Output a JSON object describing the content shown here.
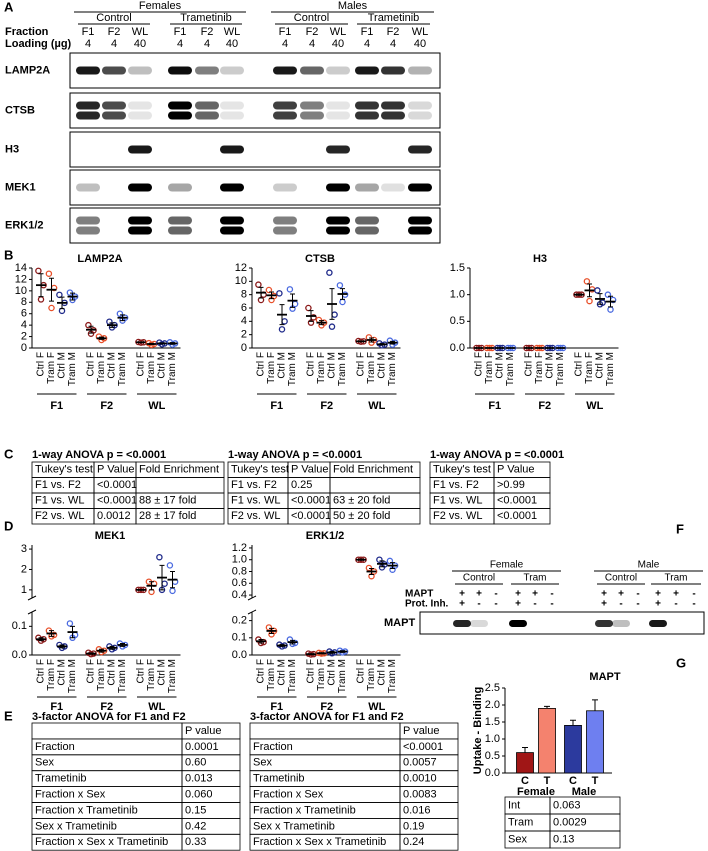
{
  "panel_labels": [
    "A",
    "B",
    "C",
    "D",
    "E",
    "F",
    "G"
  ],
  "blot_a": {
    "groups": [
      {
        "name": "Females",
        "subgroups": [
          "Control",
          "Trametinib"
        ]
      },
      {
        "name": "Males",
        "subgroups": [
          "Control",
          "Trametinib"
        ]
      }
    ],
    "row_labels": [
      "Fraction",
      "Loading (µg)"
    ],
    "fractions": [
      "F1",
      "F2",
      "WL",
      "F1",
      "F2",
      "WL",
      "F1",
      "F2",
      "WL",
      "F1",
      "F2",
      "WL"
    ],
    "loading": [
      4,
      4,
      40,
      4,
      4,
      40,
      4,
      4,
      40,
      4,
      4,
      40
    ],
    "proteins": [
      "LAMP2A",
      "CTSB",
      "H3",
      "MEK1",
      "ERK1/2"
    ]
  },
  "chart_data": [
    {
      "type": "dot",
      "title": "LAMP2A",
      "groups": [
        "F1",
        "F2",
        "WL"
      ],
      "ylim": [
        0,
        14
      ],
      "yticks": [
        0,
        2,
        4,
        6,
        8,
        10,
        12,
        14
      ],
      "series": [
        {
          "name": "Ctrl F",
          "color": "#8b1a1a",
          "values": [
            11.0,
            3.2,
            1.0
          ],
          "errors": [
            2.0,
            0.6,
            0.05
          ],
          "points": [
            [
              13.5,
              11.0,
              8.5
            ],
            [
              4.0,
              3.1,
              2.5
            ],
            [
              1.05,
              1.0,
              0.95
            ]
          ]
        },
        {
          "name": "Tram F",
          "color": "#e8502a",
          "values": [
            10.2,
            1.7,
            0.7
          ],
          "errors": [
            2.0,
            0.2,
            0.1
          ],
          "points": [
            [
              13.0,
              10.5,
              7.0
            ],
            [
              2.0,
              1.7,
              1.4
            ],
            [
              0.85,
              0.7,
              0.55
            ]
          ]
        },
        {
          "name": "Ctrl M",
          "color": "#1f2a8a",
          "values": [
            7.9,
            4.0,
            0.8
          ],
          "errors": [
            1.0,
            0.4,
            0.1
          ],
          "points": [
            [
              9.3,
              7.9,
              6.5
            ],
            [
              4.6,
              4.0,
              3.6
            ],
            [
              0.95,
              0.8,
              0.65
            ]
          ]
        },
        {
          "name": "Tram M",
          "color": "#4a6ae0",
          "values": [
            9.0,
            5.3,
            0.8
          ],
          "errors": [
            0.6,
            0.5,
            0.15
          ],
          "points": [
            [
              9.7,
              9.0,
              8.4
            ],
            [
              6.0,
              5.3,
              4.8
            ],
            [
              1.0,
              0.8,
              0.6
            ]
          ]
        }
      ]
    },
    {
      "type": "dot",
      "title": "CTSB",
      "groups": [
        "F1",
        "F2",
        "WL"
      ],
      "ylim": [
        0,
        12
      ],
      "yticks": [
        0,
        2,
        4,
        6,
        8,
        10,
        12
      ],
      "series": [
        {
          "name": "Ctrl F",
          "color": "#8b1a1a",
          "values": [
            8.3,
            4.8,
            1.0
          ],
          "errors": [
            0.8,
            0.8,
            0.05
          ],
          "points": [
            [
              9.5,
              8.0,
              7.2
            ],
            [
              6.0,
              4.6,
              3.8
            ],
            [
              1.05,
              1.0,
              0.95
            ]
          ]
        },
        {
          "name": "Tram F",
          "color": "#e8502a",
          "values": [
            7.9,
            3.8,
            1.2
          ],
          "errors": [
            0.5,
            0.3,
            0.3
          ],
          "points": [
            [
              8.7,
              7.8,
              7.2
            ],
            [
              4.2,
              3.8,
              3.4
            ],
            [
              1.6,
              1.2,
              0.8
            ]
          ]
        },
        {
          "name": "Ctrl M",
          "color": "#1f2a8a",
          "values": [
            5.0,
            6.6,
            0.55
          ],
          "errors": [
            1.5,
            2.3,
            0.1
          ],
          "points": [
            [
              8.2,
              4.0,
              2.8
            ],
            [
              11.3,
              5.0,
              3.2
            ],
            [
              0.7,
              0.5,
              0.4
            ]
          ]
        },
        {
          "name": "Tram M",
          "color": "#4a6ae0",
          "values": [
            7.1,
            8.1,
            0.8
          ],
          "errors": [
            1.0,
            0.8,
            0.2
          ],
          "points": [
            [
              8.8,
              6.6,
              5.9
            ],
            [
              9.4,
              8.0,
              6.9
            ],
            [
              1.1,
              0.8,
              0.5
            ]
          ]
        }
      ]
    },
    {
      "type": "dot",
      "title": "H3",
      "groups": [
        "F1",
        "F2",
        "WL"
      ],
      "ylim": [
        0,
        1.5
      ],
      "yticks": [
        {
          "value": 0,
          "label": "0.0"
        },
        0.5,
        {
          "value": 1,
          "label": "1.0"
        },
        1.5
      ],
      "series": [
        {
          "name": "Ctrl F",
          "color": "#8b1a1a",
          "values": [
            0,
            0,
            1.0
          ],
          "errors": [
            0,
            0,
            0.01
          ],
          "points": [
            [
              0,
              0,
              0
            ],
            [
              0,
              0,
              0
            ],
            [
              1.0,
              1.0,
              1.0
            ]
          ]
        },
        {
          "name": "Tram F",
          "color": "#e8502a",
          "values": [
            0,
            0,
            1.08
          ],
          "errors": [
            0,
            0,
            0.12
          ],
          "points": [
            [
              0,
              0,
              0
            ],
            [
              0,
              0,
              0
            ],
            [
              1.25,
              1.1,
              0.88
            ]
          ]
        },
        {
          "name": "Ctrl M",
          "color": "#1f2a8a",
          "values": [
            0,
            0,
            0.92
          ],
          "errors": [
            0,
            0,
            0.1
          ],
          "points": [
            [
              0,
              0,
              0
            ],
            [
              0,
              0,
              0
            ],
            [
              1.08,
              0.85,
              0.82
            ]
          ]
        },
        {
          "name": "Tram M",
          "color": "#4a6ae0",
          "values": [
            0,
            0,
            0.87
          ],
          "errors": [
            0,
            0,
            0.1
          ],
          "points": [
            [
              0,
              0,
              0
            ],
            [
              0,
              0,
              0
            ],
            [
              1.0,
              0.9,
              0.72
            ]
          ]
        }
      ]
    },
    {
      "type": "dot",
      "title": "MEK1",
      "groups": [
        "F1",
        "F2",
        "WL"
      ],
      "y_segments": [
        {
          "ylim": [
            0,
            0.15
          ],
          "yticks": [
            {
              "value": 0,
              "label": "0.0"
            },
            0.1
          ]
        },
        {
          "ylim": [
            0.6,
            3.2
          ],
          "yticks": [
            1,
            2,
            3
          ]
        }
      ],
      "series": [
        {
          "name": "Ctrl F",
          "color": "#8b1a1a",
          "values": [
            0.055,
            0.005,
            1.0
          ],
          "errors": [
            0.005,
            0.002,
            0.02
          ],
          "points": [
            [
              0.06,
              0.055,
              0.05
            ],
            [
              0.008,
              0.005,
              0.003
            ],
            [
              1.0,
              1.0,
              1.0
            ]
          ]
        },
        {
          "name": "Tram F",
          "color": "#e8502a",
          "values": [
            0.075,
            0.015,
            1.2
          ],
          "errors": [
            0.01,
            0.005,
            0.2
          ],
          "points": [
            [
              0.085,
              0.07,
              0.065
            ],
            [
              0.02,
              0.015,
              0.01
            ],
            [
              1.4,
              1.3,
              0.9
            ]
          ]
        },
        {
          "name": "Ctrl M",
          "color": "#1f2a8a",
          "values": [
            0.03,
            0.025,
            1.6
          ],
          "errors": [
            0.005,
            0.005,
            0.6
          ],
          "points": [
            [
              0.035,
              0.03,
              0.025
            ],
            [
              0.03,
              0.025,
              0.02
            ],
            [
              2.6,
              1.3,
              1.0
            ]
          ]
        },
        {
          "name": "Tram M",
          "color": "#4a6ae0",
          "values": [
            0.08,
            0.035,
            1.5
          ],
          "errors": [
            0.02,
            0.005,
            0.4
          ],
          "points": [
            [
              0.11,
              0.07,
              0.06
            ],
            [
              0.04,
              0.035,
              0.03
            ],
            [
              2.2,
              1.4,
              0.95
            ]
          ]
        }
      ]
    },
    {
      "type": "dot",
      "title": "ERK1/2",
      "groups": [
        "F1",
        "F2",
        "WL"
      ],
      "y_segments": [
        {
          "ylim": [
            0,
            0.25
          ],
          "yticks": [
            {
              "value": 0,
              "label": "0.0"
            },
            0.1,
            0.2
          ]
        },
        {
          "ylim": [
            0.35,
            1.25
          ],
          "yticks": [
            0.4,
            0.6,
            0.8,
            {
              "value": 1,
              "label": "1.0"
            },
            1.2
          ]
        }
      ],
      "series": [
        {
          "name": "Ctrl F",
          "color": "#8b1a1a",
          "values": [
            0.08,
            0.005,
            1.0
          ],
          "errors": [
            0.01,
            0.002,
            0.01
          ],
          "points": [
            [
              0.09,
              0.075,
              0.07
            ],
            [
              0.008,
              0.005,
              0.003
            ],
            [
              1.0,
              1.0,
              1.0
            ]
          ]
        },
        {
          "name": "Tram F",
          "color": "#e8502a",
          "values": [
            0.14,
            0.01,
            0.8
          ],
          "errors": [
            0.015,
            0.003,
            0.05
          ],
          "points": [
            [
              0.16,
              0.14,
              0.12
            ],
            [
              0.012,
              0.01,
              0.008
            ],
            [
              0.86,
              0.8,
              0.72
            ]
          ]
        },
        {
          "name": "Ctrl M",
          "color": "#1f2a8a",
          "values": [
            0.055,
            0.015,
            0.93
          ],
          "errors": [
            0.005,
            0.005,
            0.05
          ],
          "points": [
            [
              0.06,
              0.055,
              0.05
            ],
            [
              0.02,
              0.015,
              0.01
            ],
            [
              1.0,
              0.92,
              0.87
            ]
          ]
        },
        {
          "name": "Tram M",
          "color": "#4a6ae0",
          "values": [
            0.075,
            0.02,
            0.9
          ],
          "errors": [
            0.01,
            0.005,
            0.05
          ],
          "points": [
            [
              0.09,
              0.07,
              0.065
            ],
            [
              0.025,
              0.02,
              0.015
            ],
            [
              0.98,
              0.9,
              0.83
            ]
          ]
        }
      ]
    },
    {
      "type": "bar",
      "title": "MAPT",
      "y_label": "Uptake - Binding",
      "categories": [
        "C",
        "T",
        "C",
        "T"
      ],
      "groups": [
        "Female",
        "Male"
      ],
      "values": [
        0.6,
        1.9,
        1.4,
        1.83
      ],
      "errors": [
        0.15,
        0.06,
        0.15,
        0.32
      ],
      "colors": [
        "#a01616",
        "#f4826e",
        "#2c3a9e",
        "#6e7ff0"
      ],
      "ylim": [
        0,
        2.5
      ],
      "yticks": [
        {
          "value": 0,
          "label": "0.0"
        },
        0.5,
        {
          "value": 1,
          "label": "1.0"
        },
        1.5,
        {
          "value": 2,
          "label": "2.0"
        },
        2.5
      ]
    }
  ],
  "anova_c": [
    {
      "title": "1-way ANOVA   p = <0.0001",
      "header": [
        "Tukey's test",
        "P Value",
        "Fold Enrichment"
      ],
      "rows": [
        [
          "F1 vs. F2",
          "<0.0001"
        ],
        [
          "F1 vs. WL",
          "<0.0001",
          "88 ± 17 fold"
        ],
        [
          "F2 vs. WL",
          "0.0012",
          "28 ± 17 fold"
        ]
      ]
    },
    {
      "title": "1-way ANOVA   p = <0.0001",
      "header": [
        "Tukey's test",
        "P Value",
        "Fold Enrichment"
      ],
      "rows": [
        [
          "F1 vs. F2",
          "0.25"
        ],
        [
          "F1 vs. WL",
          "<0.0001",
          "63 ± 20 fold"
        ],
        [
          "F2 vs. WL",
          "<0.0001",
          "50 ± 20 fold"
        ]
      ]
    },
    {
      "title": "1-way ANOVA   p = <0.0001",
      "header": [
        "Tukey's test",
        "P Value"
      ],
      "rows": [
        [
          "F1 vs. F2",
          ">0.99"
        ],
        [
          "F1 vs. WL",
          "<0.0001"
        ],
        [
          "F2 vs. WL",
          "<0.0001"
        ]
      ]
    }
  ],
  "anova_e": [
    {
      "title": "3-factor ANOVA for F1 and F2",
      "header": [
        "P value"
      ],
      "rows": [
        [
          "Fraction",
          "0.0001"
        ],
        [
          "Sex",
          "0.60"
        ],
        [
          "Trametinib",
          "0.013"
        ],
        [
          "Fraction x Sex",
          "0.060"
        ],
        [
          "Fraction x Trametinib",
          "0.15"
        ],
        [
          "Sex x Trametinib",
          "0.42"
        ],
        [
          "Fraction x Sex x Trametinib",
          "0.33"
        ]
      ]
    },
    {
      "title": "3-factor ANOVA for F1 and F2",
      "header": [
        "P value"
      ],
      "rows": [
        [
          "Fraction",
          "<0.0001"
        ],
        [
          "Sex",
          "0.0057"
        ],
        [
          "Trametinib",
          "0.0010"
        ],
        [
          "Fraction x Sex",
          "0.0083"
        ],
        [
          "Fraction x Trametinib",
          "0.016"
        ],
        [
          "Sex x Trametinib",
          "0.19"
        ],
        [
          "Fraction x Sex x Trametinib",
          "0.24"
        ]
      ]
    }
  ],
  "blot_f": {
    "groups": [
      {
        "name": "Female",
        "subgroups": [
          "Control",
          "Tram"
        ]
      },
      {
        "name": "Male",
        "subgroups": [
          "Control",
          "Tram"
        ]
      }
    ],
    "rows": [
      {
        "label": "MAPT",
        "signs": [
          "+",
          "+",
          "-",
          "+",
          "+",
          "-",
          "+",
          "+",
          "-",
          "+",
          "+",
          "-"
        ]
      },
      {
        "label": "Prot. Inh.",
        "signs": [
          "+",
          "-",
          "-",
          "+",
          "-",
          "-",
          "+",
          "-",
          "-",
          "+",
          "-",
          "-"
        ]
      }
    ],
    "protein": "MAPT"
  },
  "mapt_stats": {
    "rows": [
      [
        "Int",
        "0.063"
      ],
      [
        "Tram",
        "0.0029"
      ],
      [
        "Sex",
        "0.13"
      ]
    ]
  }
}
